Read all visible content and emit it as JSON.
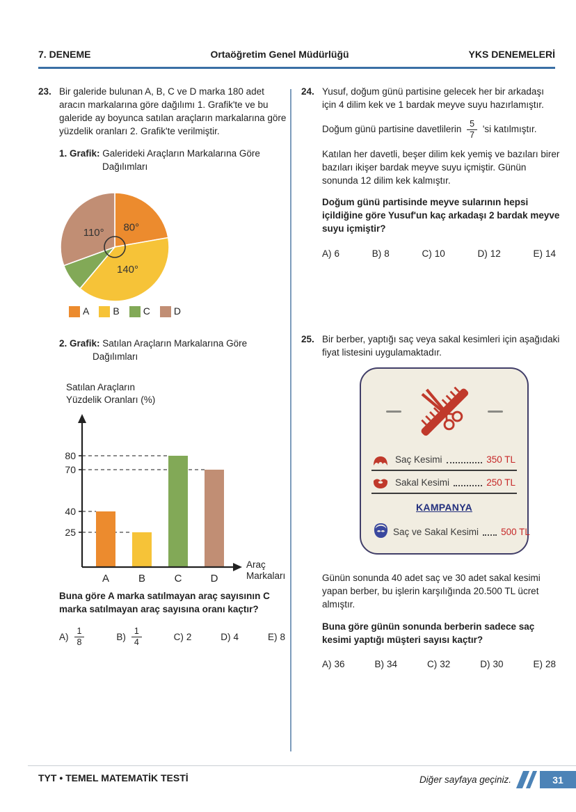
{
  "header": {
    "left": "7. DENEME",
    "center": "Ortaöğretim Genel Müdürlüğü",
    "right": "YKS DENEMELERİ"
  },
  "footer": {
    "left": "TYT • TEMEL MATEMATİK TESTİ",
    "note": "Diğer sayfaya geçiniz.",
    "page": "31"
  },
  "colors": {
    "header_line": "#3a6fa5",
    "divider": "#7d9cbc",
    "page_box": "#4c83b7",
    "card_border": "#413e68",
    "card_bg": "#f1ede1",
    "price_red": "#c62828",
    "kampanya_blue": "#23307e"
  },
  "q23": {
    "number": "23.",
    "body": "Bir galeride bulunan A, B, C ve D marka 180 adet aracın markalarına göre dağılımı 1. Grafik'te ve bu galeride ay boyunca satılan araçların markalarına göre yüzdelik oranları 2. Grafik'te verilmiştir.",
    "g1_label": "1. Grafik:",
    "g1_title": "Galerideki Araçların Markalarına Göre",
    "g1_title2": "Dağılımları",
    "g2_label": "2. Grafik:",
    "g2_title": "Satılan Araçların Markalarına Göre",
    "g2_title2": "Dağılımları",
    "bar_ylabel1": "Satılan Araçların",
    "bar_ylabel2": "Yüzdelik Oranları (%)",
    "question": "Buna göre A marka satılmayan araç sayısının C marka satılmayan araç sayısına oranı kaçtır?",
    "options": [
      {
        "label": "A)",
        "frac_num": "1",
        "frac_den": "8"
      },
      {
        "label": "B)",
        "frac_num": "1",
        "frac_den": "4"
      },
      {
        "label": "C)",
        "value": "2"
      },
      {
        "label": "D)",
        "value": "4"
      },
      {
        "label": "E)",
        "value": "8"
      }
    ]
  },
  "q24": {
    "number": "24.",
    "p1": "Yusuf, doğum günü partisine gelecek her bir arkadaşı için 4 dilim kek ve 1 bardak meyve suyu hazırlamıştır.",
    "p2_before": "Doğum günü partisine davetlilerin",
    "p2_frac_num": "5",
    "p2_frac_den": "7",
    "p2_after": "'si katılmıştır.",
    "p3": "Katılan her davetli, beşer dilim kek yemiş ve bazıları birer bazıları ikişer bardak meyve suyu içmiştir. Günün sonunda 12 dilim kek kalmıştır.",
    "question": "Doğum günü partisinde meyve sularının hepsi içildiğine göre Yusuf'un kaç arkadaşı 2 bardak meyve suyu içmiştir?",
    "options": [
      {
        "label": "A)",
        "value": "6"
      },
      {
        "label": "B)",
        "value": "8"
      },
      {
        "label": "C)",
        "value": "10"
      },
      {
        "label": "D)",
        "value": "12"
      },
      {
        "label": "E)",
        "value": "14"
      }
    ]
  },
  "q25": {
    "number": "25.",
    "p1": "Bir berber, yaptığı saç veya sakal kesimleri için aşağıdaki fiyat listesini uygulamaktadır.",
    "card": {
      "row1_label": "Saç Kesimi",
      "row1_price": "350 TL",
      "row2_label": "Sakal Kesimi",
      "row2_price": "250 TL",
      "kampanya": "KAMPANYA",
      "row3_label": "Saç ve Sakal Kesimi",
      "row3_price": "500 TL"
    },
    "p2": "Günün sonunda 40 adet saç ve 30 adet sakal kesimi yapan berber, bu işlerin karşılığında 20.500 TL ücret almıştır.",
    "question": "Buna göre günün sonunda berberin sadece saç kesimi yaptığı müşteri sayısı kaçtır?",
    "options": [
      {
        "label": "A)",
        "value": "36"
      },
      {
        "label": "B)",
        "value": "34"
      },
      {
        "label": "C)",
        "value": "32"
      },
      {
        "label": "D)",
        "value": "30"
      },
      {
        "label": "E)",
        "value": "28"
      }
    ]
  },
  "chart_data": [
    {
      "type": "pie",
      "title": "1. Grafik: Galerideki Araçların Markalarına Göre Dağılımları",
      "unit": "degrees",
      "start_at": "top",
      "direction": "clockwise",
      "segments": [
        {
          "label": "A",
          "angle": 80,
          "angle_label": "80°",
          "color": "#ec8b2e"
        },
        {
          "label": "B",
          "angle": 140,
          "angle_label": "140°",
          "color": "#f6c338"
        },
        {
          "label": "C",
          "angle": 30,
          "angle_label": null,
          "color": "#82a957"
        },
        {
          "label": "D",
          "angle": 110,
          "angle_label": "110°",
          "color": "#c18e74"
        }
      ],
      "legend": [
        "A",
        "B",
        "C",
        "D"
      ]
    },
    {
      "type": "bar",
      "title": "2. Grafik: Satılan Araçların Markalarına Göre Dağılımları",
      "categories": [
        "A",
        "B",
        "C",
        "D"
      ],
      "values": [
        40,
        25,
        80,
        70
      ],
      "colors": [
        "#ec8b2e",
        "#f6c338",
        "#82a957",
        "#c18e74"
      ],
      "yticks": [
        25,
        40,
        70,
        80
      ],
      "ylabel": "Satılan Araçların Yüzdelik Oranları (%)",
      "xlabel": "Araç Markaları",
      "ylim": [
        0,
        100
      ],
      "gridlines": "dashed-to-bar"
    }
  ]
}
